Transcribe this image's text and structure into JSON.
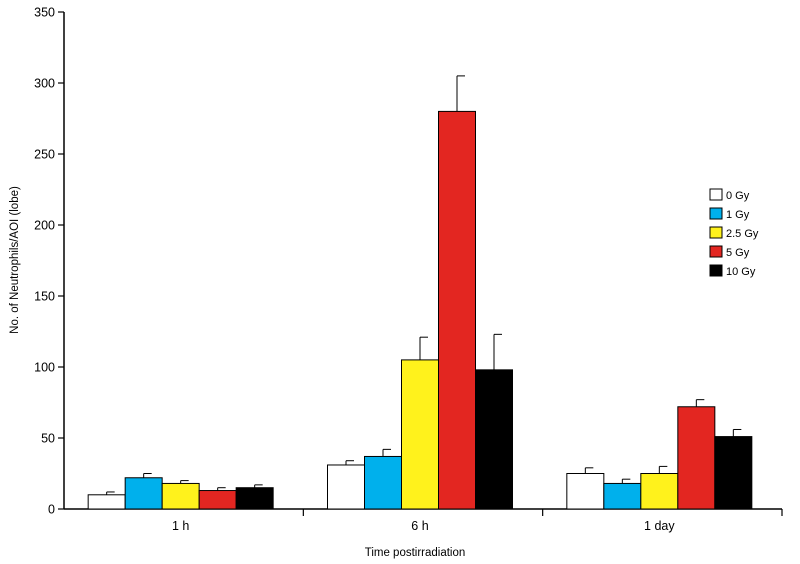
{
  "chart_data": {
    "type": "bar",
    "title": "",
    "xlabel": "Time postirradiation",
    "ylabel": "No. of  Neutrophils/AOI (lobe)",
    "ylim": [
      0,
      350
    ],
    "yticks": [
      0,
      50,
      100,
      150,
      200,
      250,
      300,
      350
    ],
    "categories": [
      "1 h",
      "6 h",
      "1 day"
    ],
    "grid": false,
    "legend_position": "right",
    "series": [
      {
        "name": "0 Gy",
        "color": "#ffffff",
        "values": [
          10,
          31,
          25
        ],
        "errors": [
          2,
          3,
          4
        ]
      },
      {
        "name": "1 Gy",
        "color": "#00b0ec",
        "values": [
          22,
          37,
          18
        ],
        "errors": [
          3,
          5,
          3
        ]
      },
      {
        "name": "2.5 Gy",
        "color": "#fff21c",
        "values": [
          18,
          105,
          25
        ],
        "errors": [
          2,
          16,
          5
        ]
      },
      {
        "name": "5 Gy",
        "color": "#e32621",
        "values": [
          13,
          280,
          72
        ],
        "errors": [
          2,
          25,
          5
        ]
      },
      {
        "name": "10 Gy",
        "color": "#000000",
        "values": [
          15,
          98,
          51
        ],
        "errors": [
          2,
          25,
          5
        ]
      }
    ]
  }
}
